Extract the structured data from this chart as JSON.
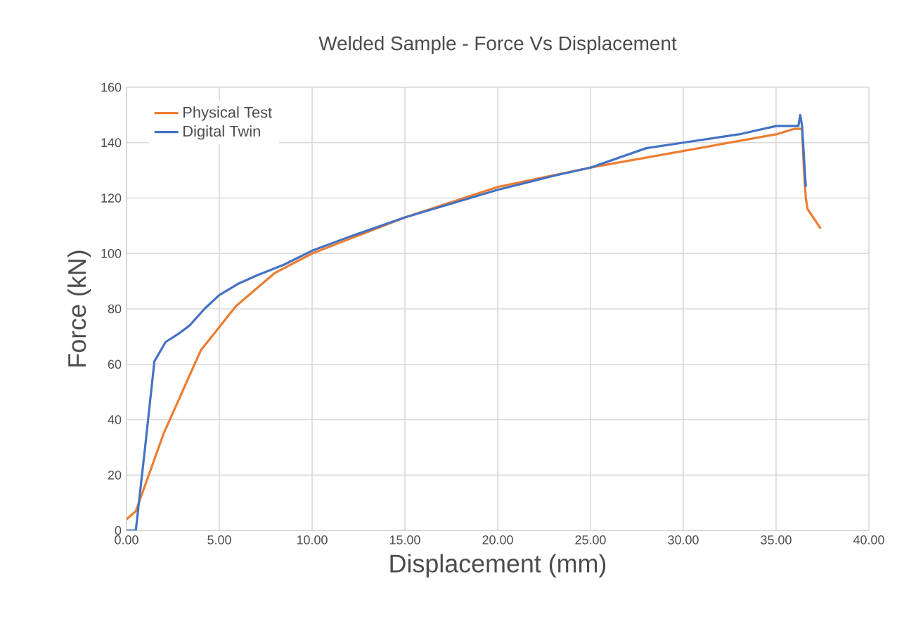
{
  "chart_data": {
    "type": "line",
    "title": "Welded Sample - Force Vs Displacement",
    "xlabel": "Displacement (mm)",
    "ylabel": "Force (kN)",
    "xlim": [
      0,
      40
    ],
    "ylim": [
      0,
      160
    ],
    "xticks": [
      {
        "value": 0,
        "label": "0.00"
      },
      {
        "value": 5,
        "label": "5.00"
      },
      {
        "value": 10,
        "label": "10.00"
      },
      {
        "value": 15,
        "label": "15.00"
      },
      {
        "value": 20,
        "label": "20.00"
      },
      {
        "value": 25,
        "label": "25.00"
      },
      {
        "value": 30,
        "label": "30.00"
      },
      {
        "value": 35,
        "label": "35.00"
      },
      {
        "value": 40,
        "label": "40.00"
      }
    ],
    "yticks": [
      0,
      20,
      40,
      60,
      80,
      100,
      120,
      140,
      160
    ],
    "grid": true,
    "legend": "top left",
    "line_style": "solid",
    "marker": "none",
    "series": [
      {
        "name": "Physical Test",
        "color": "#ed7d31",
        "x": [
          0,
          0.5,
          2,
          4,
          5.9,
          8,
          10,
          15,
          20,
          25,
          30,
          35,
          36,
          36.4,
          36.5,
          36.6,
          36.7,
          37.4
        ],
        "values": [
          4,
          7,
          35,
          65,
          81,
          93,
          100,
          113,
          124,
          131,
          137,
          143,
          145,
          145,
          130,
          120,
          116,
          109
        ]
      },
      {
        "name": "Digital Twin",
        "color": "#4472c4",
        "x": [
          0,
          0.5,
          1,
          1.5,
          2.1,
          2.8,
          3.4,
          4.2,
          5,
          6,
          7,
          8.5,
          10,
          12,
          15,
          18,
          20,
          23,
          25,
          28,
          30,
          33,
          35,
          36.2,
          36.3,
          36.4,
          36.5,
          36.6
        ],
        "values": [
          0,
          0,
          30,
          61,
          68,
          71,
          74,
          80,
          85,
          89,
          92,
          96,
          101,
          106,
          113,
          119,
          123,
          128,
          131,
          138,
          140,
          143,
          146,
          146,
          150,
          146,
          135,
          124
        ]
      }
    ]
  }
}
